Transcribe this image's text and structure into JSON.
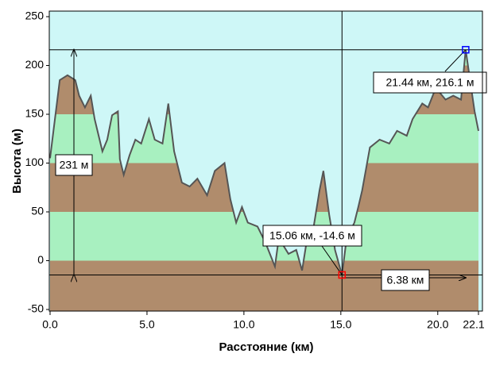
{
  "chart_data": {
    "type": "line",
    "x_label": "Расстояние  (км)",
    "y_label": "Высота  (м)",
    "x": [
      0,
      0.5,
      0.9,
      1.3,
      1.5,
      1.8,
      2.1,
      2.3,
      2.7,
      2.95,
      3.2,
      3.5,
      3.6,
      3.8,
      4.1,
      4.4,
      4.7,
      5.1,
      5.4,
      5.8,
      6.1,
      6.4,
      6.8,
      7.2,
      7.6,
      8.1,
      8.5,
      9.0,
      9.3,
      9.6,
      9.9,
      10.2,
      10.7,
      11.1,
      11.6,
      11.8,
      12.3,
      12.7,
      13.0,
      13.2,
      13.6,
      13.9,
      14.1,
      14.4,
      14.7,
      15.06,
      15.3,
      15.7,
      15.9,
      16.1,
      16.5,
      17.0,
      17.5,
      17.9,
      18.4,
      18.7,
      19.2,
      19.5,
      19.9,
      20.4,
      20.8,
      21.2,
      21.44,
      21.9,
      22.1
    ],
    "values": [
      105,
      185,
      190,
      185,
      169,
      157,
      169,
      145,
      112,
      124,
      149,
      153,
      104,
      88,
      108,
      124,
      120,
      145,
      124,
      120,
      161,
      112,
      80,
      76,
      84,
      67,
      92,
      100,
      63,
      39,
      55,
      39,
      35,
      19,
      -6,
      23,
      7,
      11,
      -10,
      15,
      35,
      72,
      92,
      47,
      11,
      -14.6,
      23,
      39,
      55,
      72,
      116,
      124,
      120,
      133,
      128,
      145,
      161,
      157,
      177,
      165,
      169,
      165,
      216.1,
      153,
      133
    ],
    "line_color": "#555555",
    "xlim": [
      0,
      22.1
    ],
    "ylim": [
      -50,
      250
    ],
    "xticks": [
      {
        "value": 0,
        "label": "0.0"
      },
      {
        "value": 5,
        "label": "5.0"
      },
      {
        "value": 10,
        "label": "10.0"
      },
      {
        "value": 15,
        "label": "15.0"
      },
      {
        "value": 20,
        "label": "20.0"
      },
      {
        "value": 22.1,
        "label": "22.1"
      }
    ],
    "yticks": [
      -50,
      0,
      50,
      100,
      150,
      200,
      250
    ],
    "max_point": {
      "x": 21.44,
      "y": 216.1,
      "label": "21.44 км, 216.1 м"
    },
    "min_point": {
      "x": 15.06,
      "y": -14.6,
      "label": "15.06 км, -14.6 м"
    },
    "height_label": "231 м",
    "distance_label": "6.38 км"
  }
}
